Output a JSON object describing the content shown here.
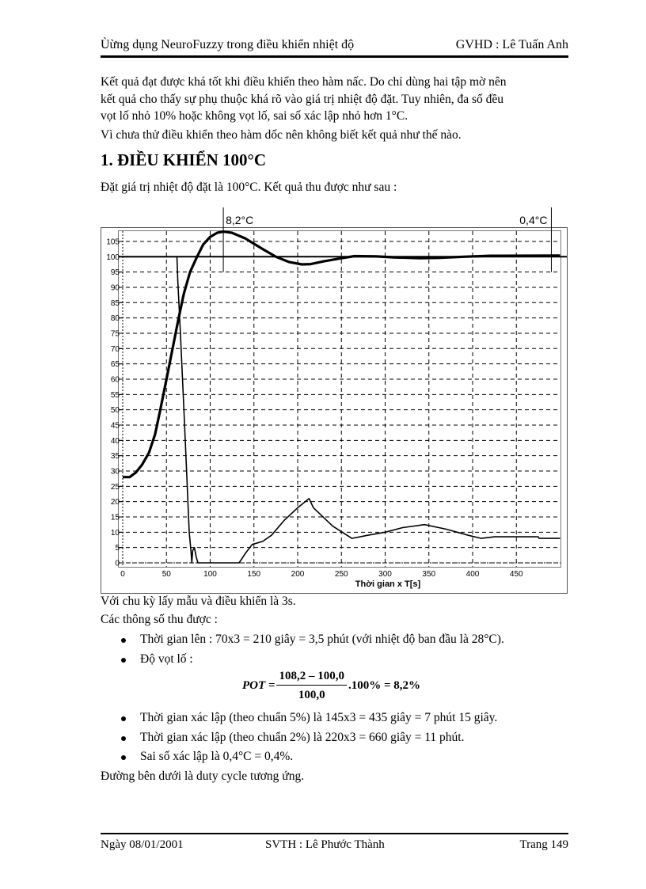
{
  "header": {
    "title": "Ùừng dụng NeuroFuzzy trong điều khiển nhiệt độ",
    "advisor": "GVHD : Lê Tuấn Anh"
  },
  "intro": [
    "Kết quả đạt được khá tốt khi điều khiển theo hàm nấc. Do chỉ dùng hai tập mờ nên",
    "kết quả cho thấy sự phụ thuộc khá rõ vào giá trị nhiệt độ đặt. Tuy nhiên, đa số đều",
    "vọt lố nhỏ 10% hoặc không vọt lố, sai số xác lập nhỏ hơn 1°C.",
    "Vì chưa thử điều khiển theo hàm dốc nên không biết kết quả như thế nào."
  ],
  "section_title": "1. ĐIỀU KHIỂN 100°C",
  "section_intro": "Đặt giá trị nhiệt độ đặt là 100°C. Kết quả thu được như sau :",
  "chart_data": {
    "type": "line",
    "xlabel": "Thời gian x T[s]",
    "ylabel": "",
    "xlim": [
      0,
      500
    ],
    "ylim": [
      -1,
      108.7
    ],
    "grid": true,
    "xticks": [
      0,
      50,
      100,
      150,
      200,
      250,
      300,
      350,
      400,
      450
    ],
    "yticks": [
      0,
      5,
      10,
      15,
      20,
      25,
      30,
      35,
      40,
      45,
      50,
      55,
      60,
      65,
      70,
      75,
      80,
      85,
      90,
      95,
      100,
      105
    ],
    "setpoint": 100,
    "annotations": [
      {
        "text": "8,2°C",
        "x": 115
      },
      {
        "text": "0,4°C",
        "x": 490
      }
    ],
    "series": [
      {
        "name": "temperature",
        "x": [
          0,
          8,
          15,
          22,
          30,
          37,
          43,
          50,
          57,
          64,
          70,
          77,
          85,
          92,
          100,
          108,
          115,
          125,
          140,
          160,
          175,
          190,
          205,
          215,
          230,
          250,
          265,
          290,
          310,
          340,
          360,
          390,
          420,
          500
        ],
        "y": [
          28,
          28,
          29.5,
          32,
          36,
          42,
          50,
          60,
          70,
          80,
          88,
          95,
          100,
          104,
          106.5,
          107.8,
          108.2,
          107.8,
          106,
          102.5,
          100,
          98.3,
          97.5,
          97.6,
          98.5,
          99.5,
          100.2,
          100.1,
          99.8,
          99.5,
          99.6,
          100,
          100.3,
          100.4
        ]
      },
      {
        "name": "duty_cycle",
        "x": [
          0,
          62,
          63,
          66,
          70,
          73,
          76,
          78,
          79,
          80,
          82,
          84,
          86,
          133,
          140,
          148,
          160,
          170,
          185,
          200,
          213,
          218,
          240,
          262,
          280,
          300,
          320,
          345,
          370,
          395,
          410,
          425,
          475,
          476,
          500
        ],
        "y": [
          100,
          100,
          92,
          75,
          50,
          30,
          10,
          4,
          0,
          4,
          5,
          2,
          0,
          0,
          3,
          6,
          7,
          9,
          14,
          18,
          21,
          18,
          12,
          8,
          9,
          10,
          11.5,
          12.5,
          11,
          9,
          8,
          8.5,
          8.5,
          8,
          8
        ]
      }
    ]
  },
  "after_chart": [
    "Với chu kỳ lấy mẫu và điều khiển là 3s.",
    "Các thông số thu được :"
  ],
  "bullets": [
    "Thời gian lên : 70x3 = 210 giây = 3,5 phút (với nhiệt độ ban đầu là 28°C).",
    "Độ vọt lố :",
    "Thời gian xác lập (theo chuẩn 5%) là 145x3 = 435 giây = 7 phút 15 giây.",
    "Thời gian xác lập (theo chuẩn 2%) là 220x3 = 660 giây = 11 phút.",
    "Sai số xác lập là 0,4°C = 0,4%."
  ],
  "formula": {
    "lhs": "POT =",
    "numerator": "108,2 – 100,0",
    "denominator": "100,0",
    "rhs": ".100% = 8,2%"
  },
  "closing": "Đường bên dưới là duty cycle tương ứng.",
  "footer": {
    "date": "Ngày 08/01/2001",
    "student": "SVTH : Lê Phước Thành",
    "page": "Trang 149"
  }
}
